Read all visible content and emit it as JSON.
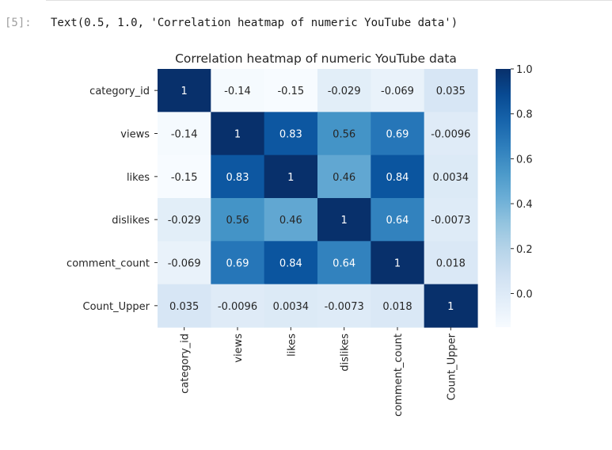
{
  "cell": {
    "prompt": "[5]:",
    "output_text": "Text(0.5, 1.0, 'Correlation heatmap of numeric YouTube data')"
  },
  "chart_data": {
    "type": "heatmap",
    "title": "Correlation heatmap of numeric YouTube data",
    "row_labels": [
      "category_id",
      "views",
      "likes",
      "dislikes",
      "comment_count",
      "Count_Upper"
    ],
    "col_labels": [
      "category_id",
      "views",
      "likes",
      "dislikes",
      "comment_count",
      "Count_Upper"
    ],
    "values": [
      [
        1,
        -0.14,
        -0.15,
        -0.029,
        -0.069,
        0.035
      ],
      [
        -0.14,
        1,
        0.83,
        0.56,
        0.69,
        -0.0096
      ],
      [
        -0.15,
        0.83,
        1,
        0.46,
        0.84,
        0.0034
      ],
      [
        -0.029,
        0.56,
        0.46,
        1,
        0.64,
        -0.0073
      ],
      [
        -0.069,
        0.69,
        0.84,
        0.64,
        1,
        0.018
      ],
      [
        0.035,
        -0.0096,
        0.0034,
        -0.0073,
        0.018,
        1
      ]
    ],
    "annotations": [
      [
        "1",
        "-0.14",
        "-0.15",
        "-0.029",
        "-0.069",
        "0.035"
      ],
      [
        "-0.14",
        "1",
        "0.83",
        "0.56",
        "0.69",
        "-0.0096"
      ],
      [
        "-0.15",
        "0.83",
        "1",
        "0.46",
        "0.84",
        "0.0034"
      ],
      [
        "-0.029",
        "0.56",
        "0.46",
        "1",
        "0.64",
        "-0.0073"
      ],
      [
        "-0.069",
        "0.69",
        "0.84",
        "0.64",
        "1",
        "0.018"
      ],
      [
        "0.035",
        "-0.0096",
        "0.0034",
        "-0.0073",
        "0.018",
        "1"
      ]
    ],
    "colormap": "Blues",
    "vmin": -0.15,
    "vmax": 1.0,
    "colorbar_ticks": [
      0.0,
      0.2,
      0.4,
      0.6,
      0.8,
      1.0
    ],
    "colorbar_tick_labels": [
      "0.0",
      "0.2",
      "0.4",
      "0.6",
      "0.8",
      "1.0"
    ]
  }
}
